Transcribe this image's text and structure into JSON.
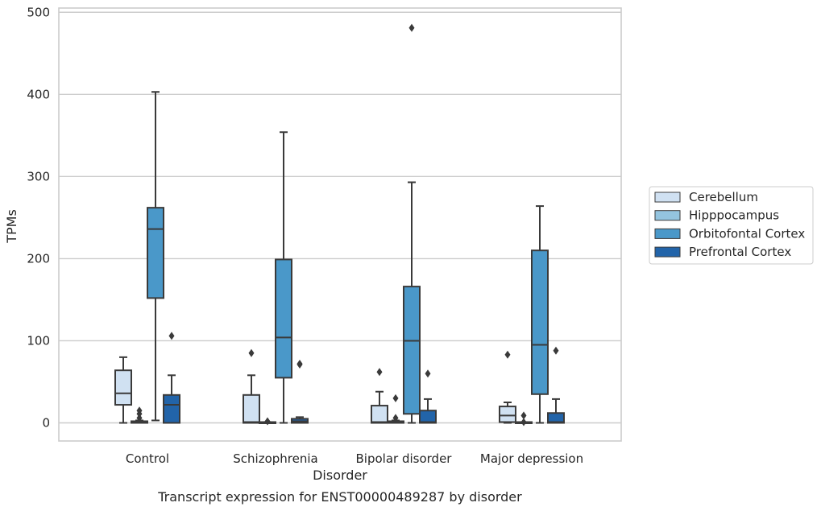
{
  "caption": "Transcript expression for ENST00000489287 by disorder",
  "chart_data": {
    "type": "box",
    "title": "",
    "xlabel": "Disorder",
    "ylabel": "TPMs",
    "categories": [
      "Control",
      "Schizophrenia",
      "Bipolar disorder",
      "Major depression"
    ],
    "ylim": [
      -22,
      505
    ],
    "yticks": [
      0,
      100,
      200,
      300,
      400,
      500
    ],
    "grid": "horizontal",
    "legend_position": "right",
    "series": [
      {
        "name": "Cerebellum",
        "color": "#d0e1f2",
        "boxes": [
          {
            "whisker_low": 0,
            "q1": 22,
            "median": 36,
            "q3": 64,
            "whisker_high": 80,
            "outliers": []
          },
          {
            "whisker_low": 0,
            "q1": 0,
            "median": 1,
            "q3": 34,
            "whisker_high": 58,
            "outliers": [
              85
            ]
          },
          {
            "whisker_low": 0,
            "q1": 0,
            "median": 1,
            "q3": 21,
            "whisker_high": 38,
            "outliers": [
              62
            ]
          },
          {
            "whisker_low": 0,
            "q1": 1,
            "median": 9,
            "q3": 20,
            "whisker_high": 25,
            "outliers": [
              83
            ]
          }
        ]
      },
      {
        "name": "Hipppocampus",
        "color": "#94c4df",
        "boxes": [
          {
            "whisker_low": 0,
            "q1": 0,
            "median": 1,
            "q3": 2,
            "whisker_high": 3,
            "outliers": [
              6,
              11,
              15
            ]
          },
          {
            "whisker_low": 0,
            "q1": 0,
            "median": 0,
            "q3": 1,
            "whisker_high": 1,
            "outliers": [
              2
            ]
          },
          {
            "whisker_low": 0,
            "q1": 0,
            "median": 1,
            "q3": 2,
            "whisker_high": 3,
            "outliers": [
              6,
              30
            ]
          },
          {
            "whisker_low": 0,
            "q1": 0,
            "median": 0,
            "q3": 1,
            "whisker_high": 1,
            "outliers": [
              1,
              9
            ]
          }
        ]
      },
      {
        "name": "Orbitofontal Cortex",
        "color": "#4a98c9",
        "boxes": [
          {
            "whisker_low": 3,
            "q1": 152,
            "median": 236,
            "q3": 262,
            "whisker_high": 403,
            "outliers": []
          },
          {
            "whisker_low": 0,
            "q1": 55,
            "median": 104,
            "q3": 199,
            "whisker_high": 354,
            "outliers": []
          },
          {
            "whisker_low": 0,
            "q1": 11,
            "median": 100,
            "q3": 166,
            "whisker_high": 293,
            "outliers": [
              481
            ]
          },
          {
            "whisker_low": 0,
            "q1": 35,
            "median": 95,
            "q3": 210,
            "whisker_high": 264,
            "outliers": []
          }
        ]
      },
      {
        "name": "Prefrontal Cortex",
        "color": "#2264a9",
        "boxes": [
          {
            "whisker_low": 0,
            "q1": 0,
            "median": 22,
            "q3": 34,
            "whisker_high": 58,
            "outliers": [
              106
            ]
          },
          {
            "whisker_low": 0,
            "q1": 0,
            "median": 2,
            "q3": 5,
            "whisker_high": 7,
            "outliers": [
              71,
              72
            ]
          },
          {
            "whisker_low": 0,
            "q1": 0,
            "median": 1,
            "q3": 15,
            "whisker_high": 29,
            "outliers": [
              60
            ]
          },
          {
            "whisker_low": 0,
            "q1": 0,
            "median": 1,
            "q3": 12,
            "whisker_high": 29,
            "outliers": [
              88
            ]
          }
        ]
      }
    ]
  }
}
